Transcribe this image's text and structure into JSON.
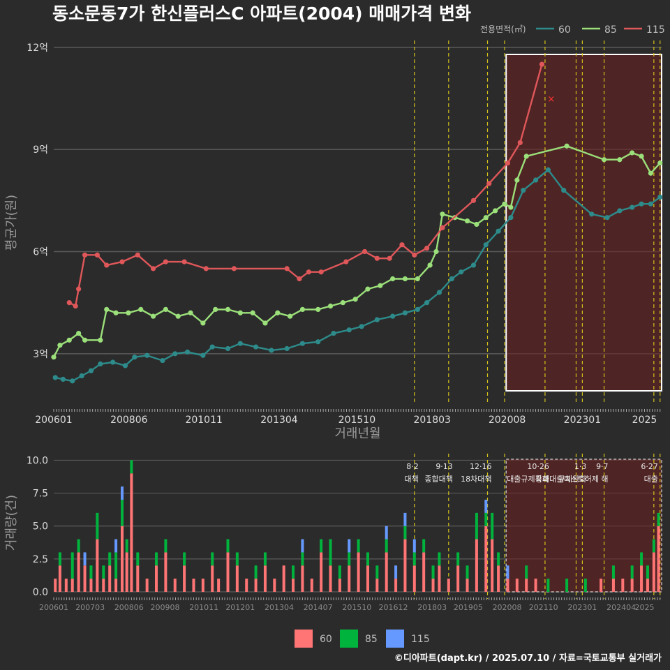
{
  "title": "동소문동7가 한신플러스C 아파트(2004) 매매가격 변화",
  "footer": "©디아파트(dapt.kr) / 2025.07.10 / 자료=국토교통부 실거래가",
  "colors": {
    "s60": "#2e8b8b",
    "s85": "#9be07a",
    "s115": "#e0575a",
    "v60": "#ff7575",
    "v85": "#00b33c",
    "v115": "#6699ff",
    "policy": "#d4c21a",
    "highlight_fill": "#6e1f1f"
  },
  "chart_data": [
    {
      "type": "line",
      "title": "동소문동7가 한신플러스C 아파트(2004) 매매가격 변화",
      "xlabel": "거래년월",
      "ylabel": "평균가(원)",
      "x_ticks": [
        "200601",
        "200806",
        "201011",
        "201304",
        "201510",
        "201803",
        "202008",
        "202301",
        "2025"
      ],
      "y_ticks": [
        "3억",
        "6억",
        "9억",
        "12억"
      ],
      "y_tick_values": [
        3,
        6,
        9,
        12
      ],
      "ylim": [
        1.5,
        12.2
      ],
      "xlim": [
        2006.0,
        2025.55
      ],
      "grid": true,
      "legend_title": "전용면적(㎡)",
      "legend_position": "top-right",
      "series": [
        {
          "name": "60",
          "points": [
            [
              2006.05,
              2.3
            ],
            [
              2006.3,
              2.25
            ],
            [
              2006.6,
              2.2
            ],
            [
              2006.9,
              2.35
            ],
            [
              2007.2,
              2.5
            ],
            [
              2007.5,
              2.7
            ],
            [
              2007.9,
              2.75
            ],
            [
              2008.3,
              2.65
            ],
            [
              2008.6,
              2.9
            ],
            [
              2009.0,
              2.95
            ],
            [
              2009.5,
              2.8
            ],
            [
              2009.9,
              3.0
            ],
            [
              2010.3,
              3.05
            ],
            [
              2010.8,
              2.95
            ],
            [
              2011.1,
              3.2
            ],
            [
              2011.6,
              3.15
            ],
            [
              2012.0,
              3.3
            ],
            [
              2012.5,
              3.2
            ],
            [
              2013.0,
              3.1
            ],
            [
              2013.5,
              3.15
            ],
            [
              2014.0,
              3.3
            ],
            [
              2014.5,
              3.35
            ],
            [
              2015.0,
              3.6
            ],
            [
              2015.5,
              3.7
            ],
            [
              2015.9,
              3.8
            ],
            [
              2016.4,
              4.0
            ],
            [
              2016.9,
              4.1
            ],
            [
              2017.3,
              4.2
            ],
            [
              2017.7,
              4.3
            ],
            [
              2018.0,
              4.5
            ],
            [
              2018.4,
              4.8
            ],
            [
              2018.8,
              5.2
            ],
            [
              2019.1,
              5.4
            ],
            [
              2019.5,
              5.6
            ],
            [
              2019.9,
              6.2
            ],
            [
              2020.3,
              6.6
            ],
            [
              2020.7,
              7.0
            ],
            [
              2021.1,
              7.8
            ],
            [
              2021.5,
              8.1
            ],
            [
              2021.9,
              8.4
            ],
            [
              2022.4,
              7.8
            ],
            [
              2023.3,
              7.1
            ],
            [
              2023.8,
              7.0
            ],
            [
              2024.2,
              7.2
            ],
            [
              2024.6,
              7.3
            ],
            [
              2024.9,
              7.4
            ],
            [
              2025.2,
              7.4
            ],
            [
              2025.5,
              7.6
            ]
          ]
        },
        {
          "name": "85",
          "points": [
            [
              2006.0,
              2.9
            ],
            [
              2006.2,
              3.25
            ],
            [
              2006.5,
              3.4
            ],
            [
              2006.8,
              3.6
            ],
            [
              2007.0,
              3.4
            ],
            [
              2007.5,
              3.4
            ],
            [
              2007.7,
              4.3
            ],
            [
              2008.0,
              4.2
            ],
            [
              2008.4,
              4.2
            ],
            [
              2008.8,
              4.3
            ],
            [
              2009.2,
              4.1
            ],
            [
              2009.6,
              4.3
            ],
            [
              2010.0,
              4.1
            ],
            [
              2010.4,
              4.2
            ],
            [
              2010.8,
              3.9
            ],
            [
              2011.2,
              4.3
            ],
            [
              2011.6,
              4.3
            ],
            [
              2012.0,
              4.2
            ],
            [
              2012.4,
              4.2
            ],
            [
              2012.8,
              3.9
            ],
            [
              2013.2,
              4.2
            ],
            [
              2013.6,
              4.1
            ],
            [
              2014.0,
              4.3
            ],
            [
              2014.5,
              4.3
            ],
            [
              2014.9,
              4.4
            ],
            [
              2015.3,
              4.5
            ],
            [
              2015.7,
              4.6
            ],
            [
              2016.1,
              4.9
            ],
            [
              2016.5,
              5.0
            ],
            [
              2016.9,
              5.2
            ],
            [
              2017.3,
              5.2
            ],
            [
              2017.7,
              5.2
            ],
            [
              2018.1,
              5.6
            ],
            [
              2018.3,
              6.0
            ],
            [
              2018.5,
              7.1
            ],
            [
              2018.9,
              7.0
            ],
            [
              2019.3,
              6.9
            ],
            [
              2019.6,
              6.8
            ],
            [
              2019.9,
              7.0
            ],
            [
              2020.2,
              7.2
            ],
            [
              2020.5,
              7.4
            ],
            [
              2020.7,
              7.3
            ],
            [
              2020.9,
              8.1
            ],
            [
              2021.2,
              8.8
            ],
            [
              2022.5,
              9.1
            ],
            [
              2023.7,
              8.7
            ],
            [
              2024.2,
              8.7
            ],
            [
              2024.6,
              8.9
            ],
            [
              2024.9,
              8.8
            ],
            [
              2025.2,
              8.3
            ],
            [
              2025.5,
              8.6
            ]
          ]
        },
        {
          "name": "115",
          "points": [
            [
              2006.5,
              4.5
            ],
            [
              2006.7,
              4.4
            ],
            [
              2006.8,
              4.9
            ],
            [
              2007.0,
              5.9
            ],
            [
              2007.4,
              5.9
            ],
            [
              2007.7,
              5.6
            ],
            [
              2008.2,
              5.7
            ],
            [
              2008.7,
              5.9
            ],
            [
              2009.2,
              5.5
            ],
            [
              2009.6,
              5.7
            ],
            [
              2010.2,
              5.7
            ],
            [
              2010.9,
              5.5
            ],
            [
              2011.8,
              5.5
            ],
            [
              2013.5,
              5.5
            ],
            [
              2013.9,
              5.2
            ],
            [
              2014.2,
              5.4
            ],
            [
              2014.6,
              5.4
            ],
            [
              2015.4,
              5.7
            ],
            [
              2016.0,
              6.0
            ],
            [
              2016.4,
              5.8
            ],
            [
              2016.8,
              5.8
            ],
            [
              2017.2,
              6.2
            ],
            [
              2017.6,
              5.9
            ],
            [
              2018.0,
              6.1
            ],
            [
              2018.5,
              6.7
            ],
            [
              2019.5,
              7.5
            ],
            [
              2020.0,
              8.0
            ],
            [
              2020.6,
              8.6
            ],
            [
              2021.0,
              9.2
            ],
            [
              2021.7,
              11.5
            ]
          ]
        }
      ]
    },
    {
      "type": "bar",
      "xlabel": "",
      "ylabel": "거래량(건)",
      "x_ticks": [
        "200601",
        "200703",
        "200806",
        "200908",
        "201011",
        "201201",
        "201304",
        "201407",
        "201510",
        "201612",
        "201803",
        "201905",
        "202008",
        "202110",
        "202301",
        "202404",
        "2025"
      ],
      "y_ticks": [
        "0.0",
        "2.5",
        "5.0",
        "7.5",
        "10.0"
      ],
      "y_tick_values": [
        0,
        2.5,
        5,
        7.5,
        10
      ],
      "ylim": [
        0,
        10.5
      ],
      "stacked": true,
      "legend_position": "bottom",
      "series_names": [
        "60",
        "85",
        "115"
      ],
      "bars": [
        [
          2006.05,
          1,
          0,
          0
        ],
        [
          2006.2,
          2,
          1,
          0
        ],
        [
          2006.4,
          1,
          0,
          0
        ],
        [
          2006.6,
          1,
          2,
          0
        ],
        [
          2006.8,
          3,
          1,
          0
        ],
        [
          2007.0,
          2,
          0,
          1
        ],
        [
          2007.2,
          1,
          1,
          0
        ],
        [
          2007.4,
          4,
          2,
          0
        ],
        [
          2007.6,
          1,
          1,
          0
        ],
        [
          2007.8,
          2,
          1,
          0
        ],
        [
          2008.0,
          1,
          2,
          1
        ],
        [
          2008.2,
          5,
          2,
          1
        ],
        [
          2008.35,
          3,
          1,
          0
        ],
        [
          2008.5,
          9,
          1,
          0
        ],
        [
          2008.7,
          2,
          1,
          0
        ],
        [
          2009.0,
          1,
          0,
          0
        ],
        [
          2009.3,
          2,
          1,
          0
        ],
        [
          2009.6,
          3,
          1,
          0
        ],
        [
          2009.9,
          1,
          0,
          0
        ],
        [
          2010.2,
          2,
          1,
          0
        ],
        [
          2010.5,
          1,
          0,
          0
        ],
        [
          2010.8,
          1,
          0,
          0
        ],
        [
          2011.1,
          2,
          1,
          0
        ],
        [
          2011.3,
          1,
          0,
          0
        ],
        [
          2011.6,
          3,
          1,
          0
        ],
        [
          2011.9,
          2,
          1,
          0
        ],
        [
          2012.2,
          1,
          0,
          0
        ],
        [
          2012.5,
          1,
          1,
          0
        ],
        [
          2012.8,
          2,
          1,
          0
        ],
        [
          2013.1,
          1,
          0,
          0
        ],
        [
          2013.4,
          2,
          0,
          0
        ],
        [
          2013.7,
          1,
          1,
          0
        ],
        [
          2014.0,
          2,
          1,
          1
        ],
        [
          2014.3,
          1,
          0,
          0
        ],
        [
          2014.6,
          3,
          1,
          0
        ],
        [
          2014.9,
          2,
          2,
          0
        ],
        [
          2015.2,
          1,
          1,
          0
        ],
        [
          2015.5,
          2,
          1,
          1
        ],
        [
          2015.8,
          3,
          1,
          0
        ],
        [
          2016.1,
          2,
          1,
          0
        ],
        [
          2016.4,
          1,
          1,
          0
        ],
        [
          2016.7,
          3,
          1,
          1
        ],
        [
          2017.0,
          1,
          0,
          1
        ],
        [
          2017.3,
          4,
          1,
          1
        ],
        [
          2017.6,
          2,
          1,
          1
        ],
        [
          2017.9,
          3,
          1,
          0
        ],
        [
          2018.2,
          1,
          1,
          0
        ],
        [
          2018.4,
          2,
          1,
          0
        ],
        [
          2018.7,
          1,
          0,
          0
        ],
        [
          2019.0,
          2,
          1,
          0
        ],
        [
          2019.3,
          1,
          1,
          0
        ],
        [
          2019.6,
          4,
          2,
          0
        ],
        [
          2019.9,
          5,
          1,
          1
        ],
        [
          2020.1,
          4,
          2,
          0
        ],
        [
          2020.3,
          2,
          1,
          0
        ],
        [
          2020.6,
          1,
          0,
          1
        ],
        [
          2020.9,
          1,
          0,
          0
        ],
        [
          2021.2,
          1,
          1,
          0
        ],
        [
          2021.5,
          1,
          0,
          0
        ],
        [
          2021.9,
          0,
          1,
          0
        ],
        [
          2022.5,
          0,
          1,
          0
        ],
        [
          2023.1,
          0,
          1,
          0
        ],
        [
          2023.6,
          1,
          0,
          0
        ],
        [
          2024.0,
          1,
          1,
          0
        ],
        [
          2024.3,
          1,
          0,
          0
        ],
        [
          2024.6,
          1,
          1,
          0
        ],
        [
          2024.9,
          2,
          1,
          0
        ],
        [
          2025.1,
          1,
          1,
          0
        ],
        [
          2025.3,
          3,
          1,
          0
        ],
        [
          2025.45,
          5,
          1,
          0
        ]
      ]
    }
  ],
  "policy_lines": [
    {
      "x": 2017.6,
      "date": "8·2",
      "label": "대책"
    },
    {
      "x": 2018.7,
      "date": "9·13",
      "label": "종합대책"
    },
    {
      "x": 2019.95,
      "date": "12·16",
      "label": "18차대책"
    },
    {
      "x": 2020.5,
      "date": "",
      "label": ""
    },
    {
      "x": 2021.8,
      "date": "10·26",
      "label": "대출규제강화"
    },
    {
      "x": 2022.8,
      "date": "",
      "label": ""
    },
    {
      "x": 2023.0,
      "date": "1·3",
      "label": "규제완화"
    },
    {
      "x": 2023.7,
      "date": "9·7",
      "label": "특례대출축소토허제 해"
    },
    {
      "x": 2025.3,
      "date": "6·27",
      "label": "대출"
    },
    {
      "x": 2025.5,
      "date": "",
      "label": ""
    }
  ],
  "highlight_range": [
    2020.55,
    2025.55
  ],
  "marker_x": {
    "x": 2022.0,
    "y": 10.5
  }
}
